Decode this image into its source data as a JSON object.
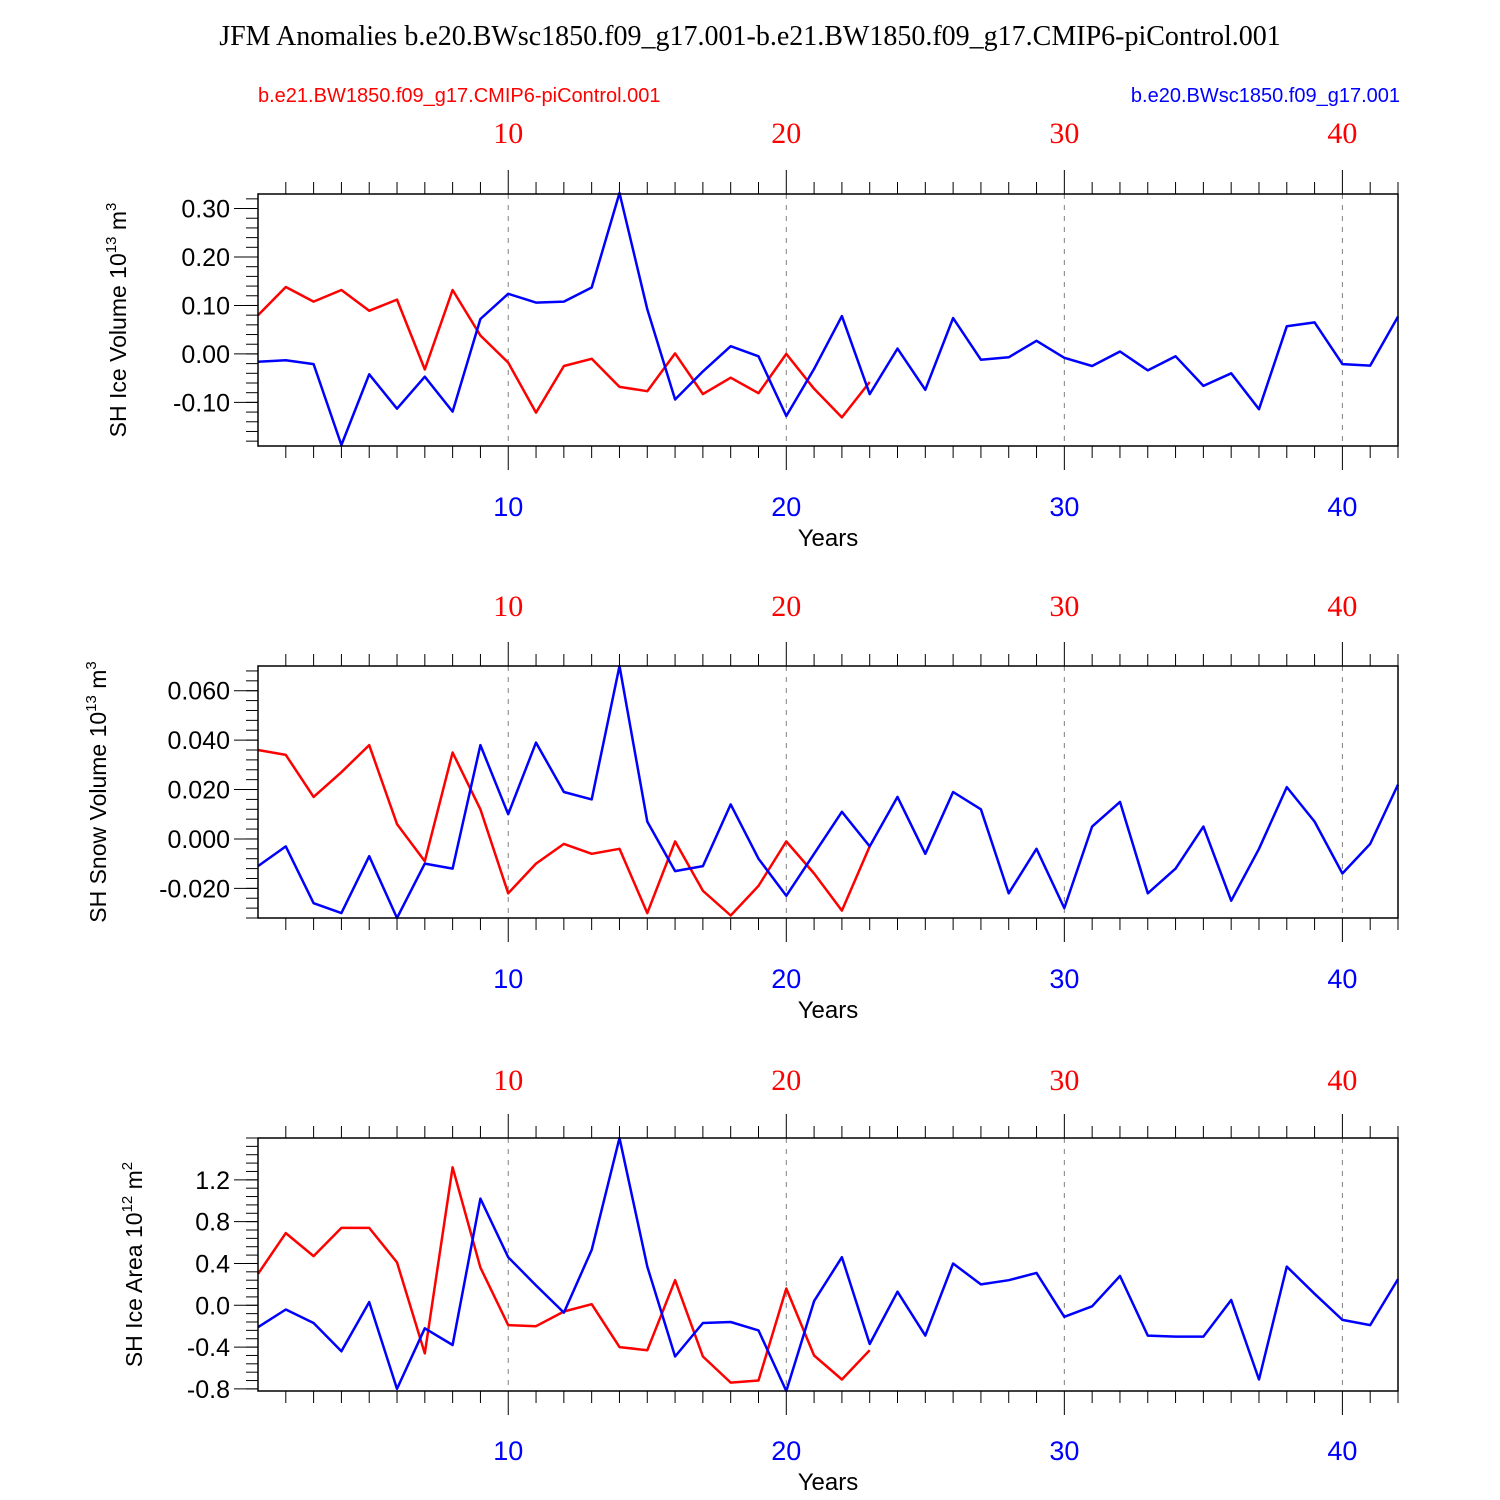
{
  "title": "JFM Anomalies b.e20.BWsc1850.f09_g17.001-b.e21.BW1850.f09_g17.CMIP6-piControl.001",
  "legend": {
    "red_label": "b.e21.BW1850.f09_g17.CMIP6-piControl.001",
    "blue_label": "b.e20.BWsc1850.f09_g17.001"
  },
  "colors": {
    "red": "#ff0000",
    "blue": "#0000ff",
    "axis": "#000000",
    "grid": "#808080"
  },
  "chart_data": [
    {
      "type": "line",
      "id": "ice-volume",
      "ylabel_main": "SH Ice Volume 10",
      "ylabel_sup": "13",
      "ylabel_unit": " m",
      "ylabel_unit_sup": "3",
      "xlabel": "Years",
      "xlim": [
        1,
        42
      ],
      "ylim": [
        -0.19,
        0.33
      ],
      "yticks": [
        0.3,
        0.2,
        0.1,
        0.0,
        -0.1
      ],
      "yticklabels": [
        "0.30",
        "0.20",
        "0.10",
        "0.00",
        "-0.10"
      ],
      "xticks_top": [
        10,
        20,
        30,
        40
      ],
      "xticks_bottom": [
        10,
        20,
        30,
        40
      ],
      "series": [
        {
          "name": "b.e21.BW1850.f09_g17.CMIP6-piControl.001",
          "color": "red",
          "x": [
            1,
            2,
            3,
            4,
            5,
            6,
            7,
            8,
            9,
            10,
            11,
            12,
            13,
            14,
            15,
            16,
            17,
            18,
            19,
            20,
            21,
            22,
            23
          ],
          "values": [
            0.08,
            0.138,
            0.108,
            0.132,
            0.089,
            0.112,
            -0.032,
            0.132,
            0.038,
            -0.018,
            -0.121,
            -0.025,
            -0.01,
            -0.068,
            -0.077,
            0.001,
            -0.083,
            -0.049,
            -0.081,
            0.0,
            -0.072,
            -0.131,
            -0.058
          ]
        },
        {
          "name": "b.e20.BWsc1850.f09_g17.001",
          "color": "blue",
          "x": [
            1,
            2,
            3,
            4,
            5,
            6,
            7,
            8,
            9,
            10,
            11,
            12,
            13,
            14,
            15,
            16,
            17,
            18,
            19,
            20,
            21,
            22,
            23,
            24,
            25,
            26,
            27,
            28,
            29,
            30,
            31,
            32,
            33,
            34,
            35,
            36,
            37,
            38,
            39,
            40,
            41,
            42
          ],
          "values": [
            -0.016,
            -0.013,
            -0.021,
            -0.188,
            -0.042,
            -0.113,
            -0.047,
            -0.119,
            0.072,
            0.124,
            0.106,
            0.108,
            0.137,
            0.332,
            0.092,
            -0.094,
            -0.036,
            0.016,
            -0.005,
            -0.128,
            -0.031,
            0.078,
            -0.083,
            0.011,
            -0.074,
            0.074,
            -0.012,
            -0.007,
            0.027,
            -0.008,
            -0.025,
            0.005,
            -0.034,
            -0.005,
            -0.066,
            -0.04,
            -0.114,
            0.057,
            0.065,
            -0.021,
            -0.024,
            0.077
          ]
        }
      ]
    },
    {
      "type": "line",
      "id": "snow-volume",
      "ylabel_main": "SH Snow Volume 10",
      "ylabel_sup": "13",
      "ylabel_unit": " m",
      "ylabel_unit_sup": "3",
      "xlabel": "Years",
      "xlim": [
        1,
        42
      ],
      "ylim": [
        -0.032,
        0.07
      ],
      "yticks": [
        0.06,
        0.04,
        0.02,
        0.0,
        -0.02
      ],
      "yticklabels": [
        "0.060",
        "0.040",
        "0.020",
        "0.000",
        "-0.020"
      ],
      "xticks_top": [
        10,
        20,
        30,
        40
      ],
      "xticks_bottom": [
        10,
        20,
        30,
        40
      ],
      "series": [
        {
          "name": "b.e21.BW1850.f09_g17.CMIP6-piControl.001",
          "color": "red",
          "x": [
            1,
            2,
            3,
            4,
            5,
            6,
            7,
            8,
            9,
            10,
            11,
            12,
            13,
            14,
            15,
            16,
            17,
            18,
            19,
            20,
            21,
            22,
            23
          ],
          "values": [
            0.036,
            0.034,
            0.017,
            0.027,
            0.038,
            0.006,
            -0.009,
            0.035,
            0.012,
            -0.022,
            -0.01,
            -0.002,
            -0.006,
            -0.004,
            -0.03,
            -0.001,
            -0.021,
            -0.031,
            -0.019,
            -0.001,
            -0.014,
            -0.029,
            -0.003
          ]
        },
        {
          "name": "b.e20.BWsc1850.f09_g17.001",
          "color": "blue",
          "x": [
            1,
            2,
            3,
            4,
            5,
            6,
            7,
            8,
            9,
            10,
            11,
            12,
            13,
            14,
            15,
            16,
            17,
            18,
            19,
            20,
            21,
            22,
            23,
            24,
            25,
            26,
            27,
            28,
            29,
            30,
            31,
            32,
            33,
            34,
            35,
            36,
            37,
            38,
            39,
            40,
            41,
            42
          ],
          "values": [
            -0.011,
            -0.003,
            -0.026,
            -0.03,
            -0.007,
            -0.032,
            -0.01,
            -0.012,
            0.038,
            0.01,
            0.039,
            0.019,
            0.016,
            0.07,
            0.007,
            -0.013,
            -0.011,
            0.014,
            -0.008,
            -0.023,
            -0.006,
            0.011,
            -0.003,
            0.017,
            -0.006,
            0.019,
            0.012,
            -0.022,
            -0.004,
            -0.028,
            0.005,
            0.015,
            -0.022,
            -0.012,
            0.005,
            -0.025,
            -0.004,
            0.021,
            0.007,
            -0.014,
            -0.002,
            0.022
          ]
        }
      ]
    },
    {
      "type": "line",
      "id": "ice-area",
      "ylabel_main": "SH Ice Area 10",
      "ylabel_sup": "12",
      "ylabel_unit": " m",
      "ylabel_unit_sup": "2",
      "xlabel": "Years",
      "xlim": [
        1,
        42
      ],
      "ylim": [
        -0.82,
        1.6
      ],
      "yticks": [
        1.2,
        0.8,
        0.4,
        0.0,
        -0.4,
        -0.8
      ],
      "yticklabels": [
        "1.2",
        "0.8",
        "0.4",
        "0.0",
        "-0.4",
        "-0.8"
      ],
      "xticks_top": [
        10,
        20,
        30,
        40
      ],
      "xticks_bottom": [
        10,
        20,
        30,
        40
      ],
      "series": [
        {
          "name": "b.e21.BW1850.f09_g17.CMIP6-piControl.001",
          "color": "red",
          "x": [
            1,
            2,
            3,
            4,
            5,
            6,
            7,
            8,
            9,
            10,
            11,
            12,
            13,
            14,
            15,
            16,
            17,
            18,
            19,
            20,
            21,
            22,
            23
          ],
          "values": [
            0.3,
            0.69,
            0.47,
            0.74,
            0.74,
            0.41,
            -0.46,
            1.32,
            0.36,
            -0.19,
            -0.2,
            -0.06,
            0.01,
            -0.4,
            -0.43,
            0.24,
            -0.49,
            -0.74,
            -0.72,
            0.16,
            -0.48,
            -0.71,
            -0.43
          ]
        },
        {
          "name": "b.e20.BWsc1850.f09_g17.001",
          "color": "blue",
          "x": [
            1,
            2,
            3,
            4,
            5,
            6,
            7,
            8,
            9,
            10,
            11,
            12,
            13,
            14,
            15,
            16,
            17,
            18,
            19,
            20,
            21,
            22,
            23,
            24,
            25,
            26,
            27,
            28,
            29,
            30,
            31,
            32,
            33,
            34,
            35,
            36,
            37,
            38,
            39,
            40,
            41,
            42
          ],
          "values": [
            -0.21,
            -0.04,
            -0.17,
            -0.44,
            0.03,
            -0.8,
            -0.22,
            -0.38,
            1.02,
            0.46,
            0.19,
            -0.07,
            0.53,
            1.6,
            0.37,
            -0.49,
            -0.17,
            -0.16,
            -0.24,
            -0.82,
            0.04,
            0.46,
            -0.37,
            0.13,
            -0.29,
            0.4,
            0.2,
            0.24,
            0.31,
            -0.11,
            -0.01,
            0.28,
            -0.29,
            -0.3,
            -0.3,
            0.05,
            -0.71,
            0.37,
            0.11,
            -0.14,
            -0.19,
            0.25
          ]
        }
      ]
    }
  ]
}
